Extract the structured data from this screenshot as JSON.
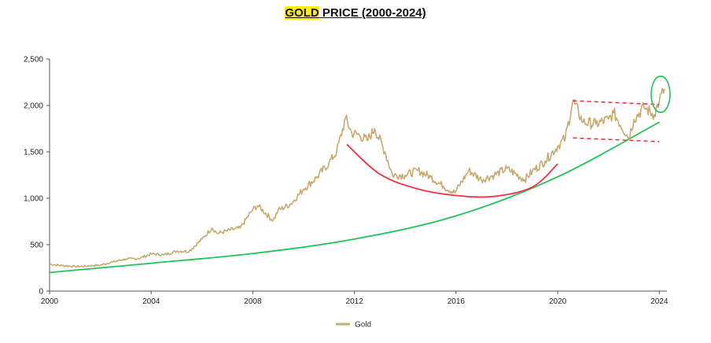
{
  "chart_data": {
    "type": "line",
    "title_highlight": "GOLD",
    "title_rest": " PRICE (2000-2024)",
    "xlabel": "",
    "ylabel": "",
    "xlim": [
      2000,
      2024.3
    ],
    "ylim": [
      0,
      2500
    ],
    "x_ticks": [
      "2000",
      "2004",
      "2008",
      "2012",
      "2016",
      "2020",
      "2024"
    ],
    "y_ticks": [
      "0",
      "500",
      "1,000",
      "1,500",
      "2,000",
      "2,500"
    ],
    "grid": false,
    "legend": {
      "position": "bottom",
      "entries": [
        "Gold"
      ]
    },
    "series": [
      {
        "name": "Gold",
        "color": "#c8a96e",
        "x": [
          2000.0,
          2000.5,
          2001.0,
          2001.5,
          2002.0,
          2002.5,
          2003.0,
          2003.5,
          2004.0,
          2004.5,
          2005.0,
          2005.5,
          2006.0,
          2006.4,
          2006.6,
          2007.0,
          2007.5,
          2008.0,
          2008.2,
          2008.8,
          2009.0,
          2009.5,
          2010.0,
          2010.5,
          2011.0,
          2011.3,
          2011.65,
          2011.9,
          2012.2,
          2012.5,
          2012.8,
          2013.2,
          2013.5,
          2014.0,
          2014.5,
          2015.0,
          2015.5,
          2015.95,
          2016.5,
          2017.0,
          2017.5,
          2018.0,
          2018.7,
          2019.0,
          2019.5,
          2020.0,
          2020.3,
          2020.6,
          2021.0,
          2021.5,
          2022.0,
          2022.2,
          2022.8,
          2023.0,
          2023.4,
          2023.8,
          2024.0,
          2024.2
        ],
        "y": [
          290,
          275,
          265,
          270,
          280,
          315,
          345,
          350,
          400,
          390,
          430,
          430,
          560,
          680,
          620,
          650,
          680,
          880,
          920,
          760,
          870,
          940,
          1100,
          1220,
          1380,
          1500,
          1860,
          1700,
          1680,
          1620,
          1750,
          1500,
          1250,
          1250,
          1300,
          1230,
          1130,
          1060,
          1300,
          1200,
          1250,
          1320,
          1200,
          1290,
          1400,
          1560,
          1650,
          2050,
          1820,
          1800,
          1850,
          1920,
          1650,
          1850,
          1980,
          1900,
          2050,
          2180
        ]
      },
      {
        "name": "",
        "color": "#22c25a",
        "x": [
          2000.0,
          2004.0,
          2008.0,
          2012.0,
          2016.0,
          2020.0,
          2024.0
        ],
        "y": [
          200,
          300,
          405,
          560,
          810,
          1230,
          1820
        ]
      }
    ],
    "annotations": [
      {
        "kind": "arc",
        "color": "#ee3344",
        "x": [
          2011.7,
          2013.0,
          2014.5,
          2016.0,
          2017.5,
          2019.0,
          2020.0
        ],
        "y": [
          1580,
          1260,
          1100,
          1030,
          1020,
          1120,
          1370
        ]
      },
      {
        "kind": "dashed-line",
        "color": "#ee3344",
        "x": [
          2020.6,
          2024.0
        ],
        "y": [
          2050,
          2010
        ]
      },
      {
        "kind": "dashed-line",
        "color": "#ee3344",
        "x": [
          2020.6,
          2024.0
        ],
        "y": [
          1650,
          1610
        ]
      },
      {
        "kind": "circle",
        "color": "#22c25a",
        "cx": 2024.05,
        "cy": 2120
      }
    ]
  }
}
